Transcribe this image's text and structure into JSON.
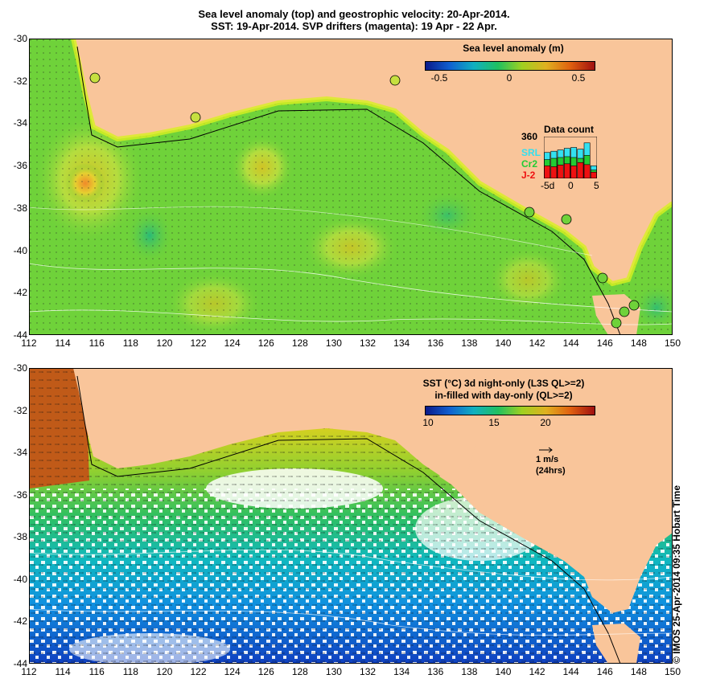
{
  "header": {
    "line1": "Sea level anomaly (top) and geostrophic velocity: 20-Apr-2014.",
    "line2": "SST: 19-Apr-2014. SVP drifters (magenta): 19 Apr - 22 Apr."
  },
  "top_panel": {
    "colorbar": {
      "title": "Sea level anomaly (m)",
      "ticks": [
        "-0.5",
        "0",
        "0.5"
      ]
    },
    "data_count": {
      "title": "Data count",
      "ymax_label": "360",
      "x_ticks": [
        "-5d",
        "0",
        "5"
      ],
      "series": [
        {
          "name": "SRL",
          "color": "#33e0f0",
          "values": [
            0.62,
            0.65,
            0.68,
            0.72,
            0.74,
            0.7,
            0.85,
            0.3
          ]
        },
        {
          "name": "Cr2",
          "color": "#22cc33",
          "values": [
            0.45,
            0.48,
            0.5,
            0.52,
            0.5,
            0.48,
            0.55,
            0.2
          ]
        },
        {
          "name": "J-2",
          "color": "#ee1111",
          "values": [
            0.3,
            0.28,
            0.32,
            0.35,
            0.3,
            0.38,
            0.33,
            0.15
          ]
        }
      ]
    }
  },
  "bottom_panel": {
    "colorbar": {
      "title_line1": "SST (°C)  3d night-only (L3S QL>=2)",
      "title_line2": "in-filled with day-only (QL>=2)",
      "ticks": [
        "10",
        "15",
        "20"
      ]
    },
    "scale_arrow": {
      "line1": "1 m/s",
      "line2": "(24hrs)"
    }
  },
  "axes": {
    "x_ticks": [
      "112",
      "114",
      "116",
      "118",
      "120",
      "122",
      "124",
      "126",
      "128",
      "130",
      "132",
      "134",
      "136",
      "138",
      "140",
      "142",
      "144",
      "146",
      "148",
      "150"
    ],
    "y_ticks": [
      "-30",
      "-32",
      "-34",
      "-36",
      "-38",
      "-40",
      "-42",
      "-44"
    ]
  },
  "colors": {
    "land": "#f9c59a",
    "ocean_mid": "#6fd23a",
    "sla_colormap_low": "#0a1a8a",
    "sla_colormap_high": "#c02a10"
  },
  "credit": "© IMOS 25-Apr-2014 09:35 Hobart Time"
}
